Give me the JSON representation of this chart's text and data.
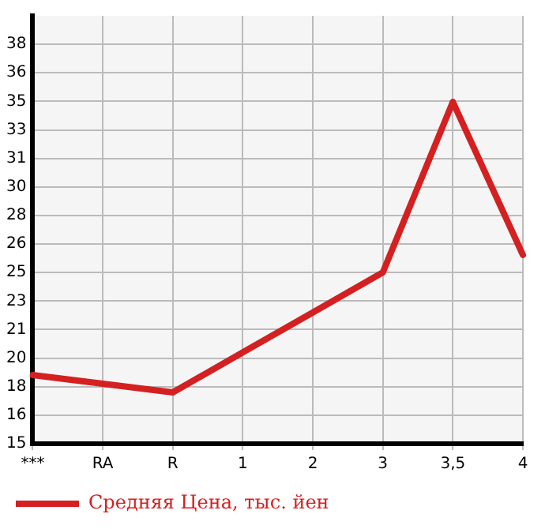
{
  "chart_data": {
    "type": "line",
    "categories": [
      "***",
      "RA",
      "R",
      "1",
      "2",
      "3",
      "3,5",
      "4"
    ],
    "series": [
      {
        "name": "Средняя Цена, тыс. йен",
        "color": "#d42020",
        "values": [
          18.8,
          null,
          17.8,
          20.1,
          22.4,
          24.7,
          34.5,
          25.7
        ]
      }
    ],
    "ylim": [
      14.85,
      39.45
    ],
    "yticks": [
      {
        "value": 14.85,
        "label": "15"
      },
      {
        "value": 16.49,
        "label": "16"
      },
      {
        "value": 18.13,
        "label": "18"
      },
      {
        "value": 19.77,
        "label": "20"
      },
      {
        "value": 21.41,
        "label": "21"
      },
      {
        "value": 23.05,
        "label": "23"
      },
      {
        "value": 24.69,
        "label": "25"
      },
      {
        "value": 26.33,
        "label": "26"
      },
      {
        "value": 27.97,
        "label": "28"
      },
      {
        "value": 29.61,
        "label": "30"
      },
      {
        "value": 31.25,
        "label": "31"
      },
      {
        "value": 32.89,
        "label": "33"
      },
      {
        "value": 34.53,
        "label": "35"
      },
      {
        "value": 36.17,
        "label": "36"
      },
      {
        "value": 37.81,
        "label": "38"
      }
    ],
    "grid": true,
    "legend": "bottom left",
    "marker": "none",
    "line_style": "solid"
  }
}
